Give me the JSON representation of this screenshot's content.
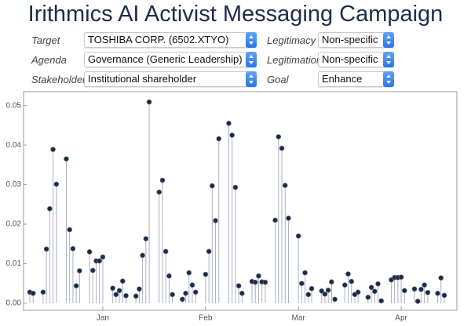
{
  "header": {
    "title": "Irithmics AI Activist Messaging Campaign"
  },
  "controls": [
    {
      "label": "Target",
      "value": "TOSHIBA CORP. (6502.XTYO)"
    },
    {
      "label": "Agenda",
      "value": "Governance (Generic Leadership)"
    },
    {
      "label": "Stakeholder",
      "value": "Institutional shareholder"
    },
    {
      "label": "Legitimacy",
      "value": "Non-specific"
    },
    {
      "label": "Legitimation",
      "value": "Non-specific"
    },
    {
      "label": "Goal",
      "value": "Enhance"
    }
  ],
  "chart_data": {
    "type": "stem",
    "categories": [
      null,
      null,
      null,
      null,
      null,
      null,
      null,
      null,
      null,
      null,
      null,
      null,
      null,
      null,
      null,
      null,
      null,
      null,
      null,
      null,
      null,
      null,
      "Jan",
      null,
      null,
      null,
      null,
      null,
      null,
      null,
      null,
      null,
      null,
      null,
      null,
      null,
      null,
      null,
      null,
      null,
      null,
      null,
      null,
      null,
      null,
      null,
      null,
      null,
      null,
      null,
      null,
      null,
      null,
      "Feb",
      null,
      null,
      null,
      null,
      null,
      null,
      null,
      null,
      null,
      null,
      null,
      null,
      null,
      null,
      null,
      null,
      null,
      null,
      null,
      null,
      null,
      null,
      null,
      null,
      null,
      null,
      null,
      "Mar",
      null,
      null,
      null,
      null,
      null,
      null,
      null,
      null,
      null,
      null,
      null,
      null,
      null,
      null,
      null,
      null,
      null,
      null,
      null,
      null,
      null,
      null,
      null,
      null,
      null,
      null,
      null,
      null,
      null,
      null,
      "Apr",
      null,
      null,
      null,
      null,
      null,
      null,
      null,
      null,
      null,
      null,
      null,
      null,
      null
    ],
    "values": [
      0.0028,
      0.0025,
      null,
      null,
      0.0028,
      0.0137,
      0.0239,
      0.0389,
      0.0301,
      null,
      null,
      0.0365,
      0.0186,
      0.0138,
      0.0044,
      0.0082,
      null,
      null,
      0.013,
      0.0083,
      0.0107,
      0.0107,
      0.0117,
      null,
      null,
      0.0038,
      0.0022,
      0.0032,
      0.0056,
      0.0019,
      null,
      null,
      0.0018,
      0.0036,
      0.0121,
      0.0163,
      0.0509,
      null,
      null,
      0.0281,
      0.0311,
      0.0131,
      0.0069,
      0.0022,
      null,
      null,
      0.001,
      0.0025,
      0.0077,
      0.0046,
      0.0028,
      null,
      null,
      0.0073,
      0.0131,
      0.0297,
      0.0209,
      0.0416,
      null,
      null,
      0.0455,
      0.0425,
      0.0293,
      0.0044,
      0.0025,
      null,
      null,
      0.0055,
      0.0053,
      0.0069,
      0.0054,
      0.0053,
      null,
      null,
      0.021,
      0.0421,
      0.0392,
      0.0298,
      0.0215,
      null,
      null,
      0.017,
      0.005,
      0.0077,
      0.0022,
      0.0037,
      null,
      null,
      0.0031,
      0.0023,
      0.0033,
      0.0054,
      0.001,
      null,
      null,
      0.0046,
      0.0074,
      0.0055,
      0.0022,
      0.0028,
      null,
      null,
      0.0015,
      0.004,
      0.003,
      0.0049,
      0.0006,
      null,
      null,
      0.0059,
      0.0065,
      0.0065,
      0.0066,
      0.0032,
      null,
      null,
      0.0036,
      0.0005,
      0.0035,
      0.0046,
      0.0027,
      null,
      null,
      0.0025,
      0.0064,
      0.002
    ],
    "color": "#1c2a44",
    "stem_color": "#a9b1bf",
    "ylim": [
      -0.0018,
      0.0535
    ],
    "yticks": [
      {
        "value": 0,
        "label": "0.00"
      },
      {
        "value": 0.01,
        "label": "0.01"
      },
      {
        "value": 0.02,
        "label": "0.02"
      },
      {
        "value": 0.03,
        "label": "0.03"
      },
      {
        "value": 0.04,
        "label": "0.04"
      },
      {
        "value": 0.05,
        "label": "0.05"
      }
    ]
  }
}
